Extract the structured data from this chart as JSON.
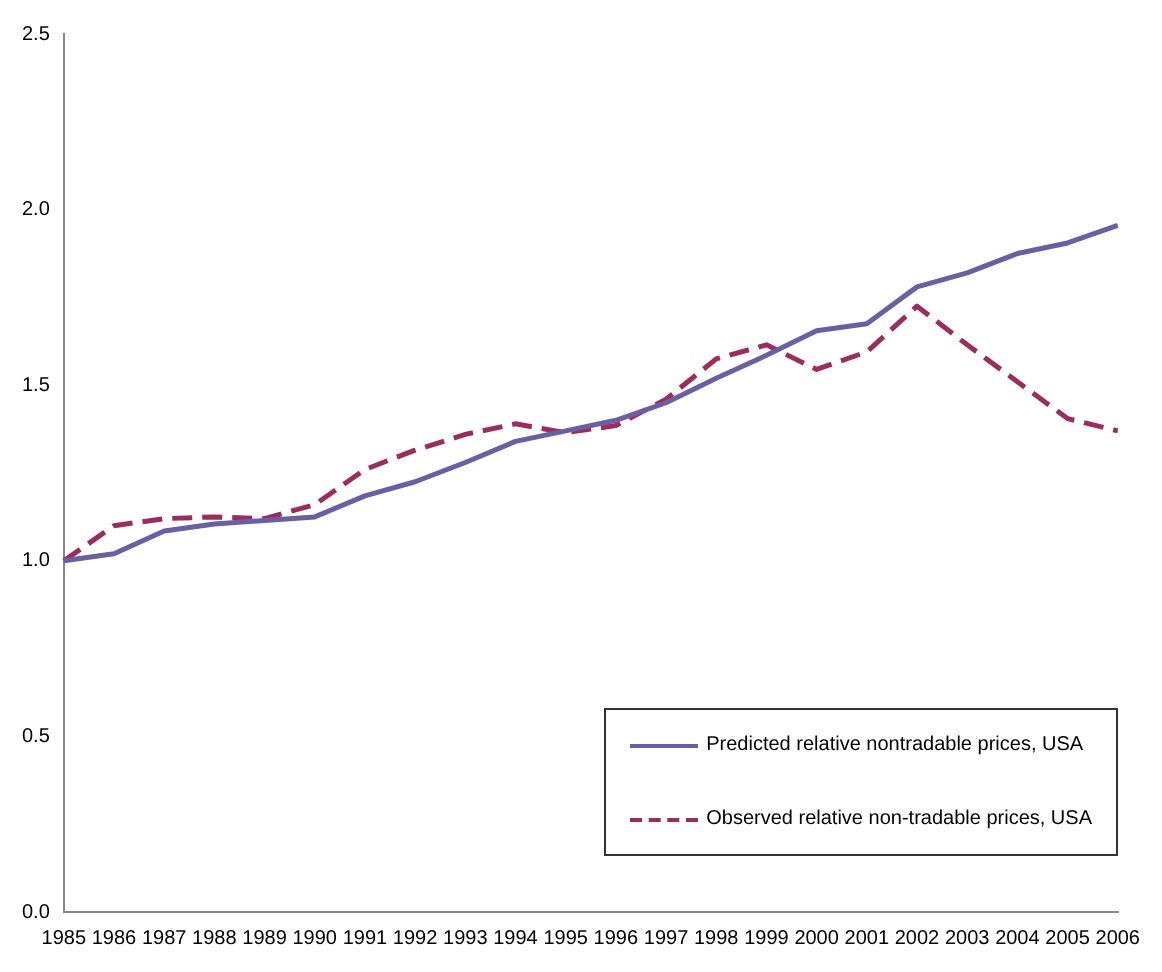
{
  "chart_data": {
    "type": "line",
    "categories": [
      "1985",
      "1986",
      "1987",
      "1988",
      "1989",
      "1990",
      "1991",
      "1992",
      "1993",
      "1994",
      "1995",
      "1996",
      "1997",
      "1998",
      "1999",
      "2000",
      "2001",
      "2002",
      "2003",
      "2004",
      "2005",
      "2006"
    ],
    "series": [
      {
        "name": "Predicted relative nontradable prices, USA",
        "color": "#6a5fa0",
        "line_style": "solid",
        "values": [
          1.0,
          1.02,
          1.085,
          1.105,
          1.115,
          1.125,
          1.185,
          1.225,
          1.28,
          1.34,
          1.37,
          1.4,
          1.45,
          1.52,
          1.585,
          1.655,
          1.675,
          1.78,
          1.82,
          1.875,
          1.905,
          1.955
        ]
      },
      {
        "name": "Observed relative non-tradable prices, USA",
        "color": "#9b2d5e",
        "line_style": "dashed",
        "values": [
          1.0,
          1.1,
          1.12,
          1.125,
          1.12,
          1.16,
          1.26,
          1.315,
          1.36,
          1.39,
          1.365,
          1.385,
          1.46,
          1.575,
          1.615,
          1.545,
          1.595,
          1.725,
          1.615,
          1.51,
          1.405,
          1.37
        ]
      }
    ],
    "ylim": [
      0,
      2.5
    ],
    "yticks": [
      {
        "value": 0,
        "label": "0.0"
      },
      {
        "value": 0.5,
        "label": "0.5"
      },
      {
        "value": 1,
        "label": "1.0"
      },
      {
        "value": 1.5,
        "label": "1.5"
      },
      {
        "value": 2,
        "label": "2.0"
      },
      {
        "value": 2.5,
        "label": "2.5"
      }
    ],
    "grid": false,
    "legend": "bottom right",
    "marker": "none"
  }
}
